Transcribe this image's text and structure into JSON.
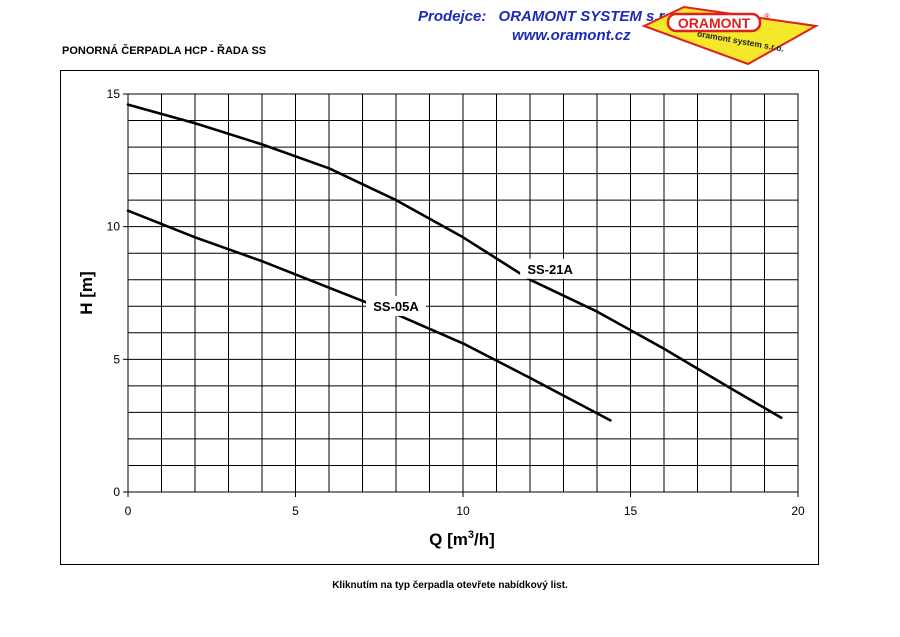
{
  "header": {
    "dealer_label": "Prodejce:",
    "company": "ORAMONT SYSTEM s.r.o.",
    "website": "www.oramont.cz",
    "logo_text_main": "ORAMONT",
    "logo_text_sub": "oramont system s.r.o.",
    "logo_mark": "®"
  },
  "page_title": "PONORNÁ ČERPADLA HCP - ŘADA SS",
  "footer_note": "Kliknutím na typ čerpadla otevřete nabídkový list.",
  "colors": {
    "brand_blue": "#1c2bb8",
    "logo_yellow": "#f5e72a",
    "logo_red": "#e02020"
  },
  "chart_data": {
    "type": "line",
    "title": "",
    "xlabel_main": "Q [m",
    "xlabel_sup": "3",
    "xlabel_tail": "/h]",
    "ylabel": "H [m]",
    "xlim": [
      0,
      20
    ],
    "ylim": [
      0,
      15
    ],
    "x_ticks": [
      0,
      5,
      10,
      15,
      20
    ],
    "y_ticks": [
      0,
      5,
      10,
      15
    ],
    "x_grid_step": 1,
    "y_grid_step": 1,
    "grid": true,
    "series": [
      {
        "name": "SS-21A",
        "x": [
          0,
          2,
          4,
          6,
          8,
          10,
          12,
          14,
          16,
          18,
          19.5
        ],
        "y": [
          14.6,
          13.9,
          13.1,
          12.2,
          11.0,
          9.6,
          8.0,
          6.8,
          5.4,
          3.9,
          2.8
        ]
      },
      {
        "name": "SS-05A",
        "x": [
          0,
          2,
          4,
          6,
          8,
          10,
          12,
          14.4
        ],
        "y": [
          10.6,
          9.6,
          8.7,
          7.7,
          6.7,
          5.6,
          4.3,
          2.7
        ]
      }
    ]
  }
}
